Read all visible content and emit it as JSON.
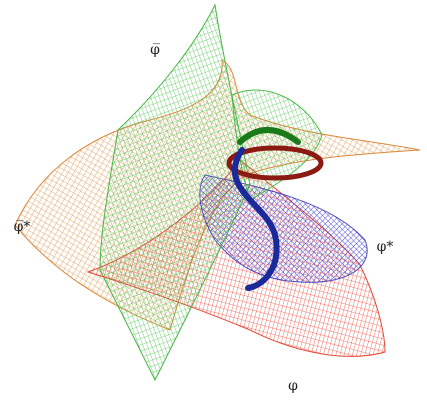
{
  "labels": {
    "phi_bar": "φ̅",
    "phi_bar_star": "φ̅*",
    "phi_star": "φ*",
    "phi": "φ"
  }
}
